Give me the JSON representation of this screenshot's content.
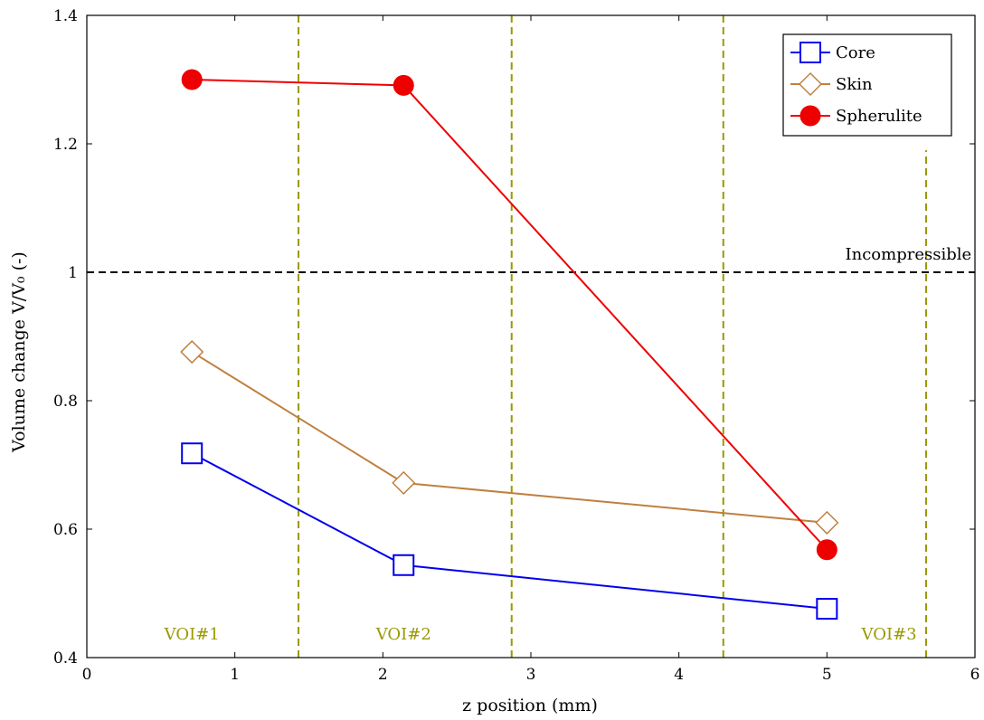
{
  "chart_data": {
    "type": "line",
    "xlabel": "z position (mm)",
    "ylabel": "Volume change V/V₀ (-)",
    "xlim": [
      0,
      6
    ],
    "ylim": [
      0.4,
      1.4
    ],
    "xticks": [
      0,
      1,
      2,
      3,
      4,
      5,
      6
    ],
    "yticks": [
      0.4,
      0.6,
      0.8,
      1,
      1.2,
      1.4
    ],
    "xtick_labels": [
      "0",
      "1",
      "2",
      "3",
      "4",
      "5",
      "6"
    ],
    "ytick_labels": [
      "0.4",
      "0.6",
      "0.8",
      "1",
      "1.2",
      "1.4"
    ],
    "grid": false,
    "legend_position": "top-right",
    "series": [
      {
        "name": "Core",
        "color": "#0000ee",
        "marker": "square",
        "x": [
          0.71,
          2.14,
          5.0
        ],
        "y": [
          0.718,
          0.544,
          0.476
        ]
      },
      {
        "name": "Skin",
        "color": "#bf8040",
        "marker": "diamond",
        "x": [
          0.71,
          2.14,
          5.0
        ],
        "y": [
          0.876,
          0.672,
          0.61
        ]
      },
      {
        "name": "Spherulite",
        "color": "#ee0000",
        "marker": "circle",
        "x": [
          0.71,
          2.14,
          5.0
        ],
        "y": [
          1.3,
          1.291,
          0.568
        ]
      }
    ],
    "reference_line": {
      "y": 1,
      "label": "Incompressible",
      "color": "#000000"
    },
    "regions": {
      "color": "#999900",
      "boundaries": [
        {
          "x": 1.43,
          "y_top": 1.4
        },
        {
          "x": 2.87,
          "y_top": 1.4
        },
        {
          "x": 4.3,
          "y_top": 1.4
        },
        {
          "x": 5.67,
          "y_top": 1.19
        }
      ],
      "labels": [
        {
          "text": "VOI#1",
          "x": 0.71
        },
        {
          "text": "VOI#2",
          "x": 2.14
        },
        {
          "text": "VOI#3",
          "x": 5.42
        }
      ]
    }
  }
}
